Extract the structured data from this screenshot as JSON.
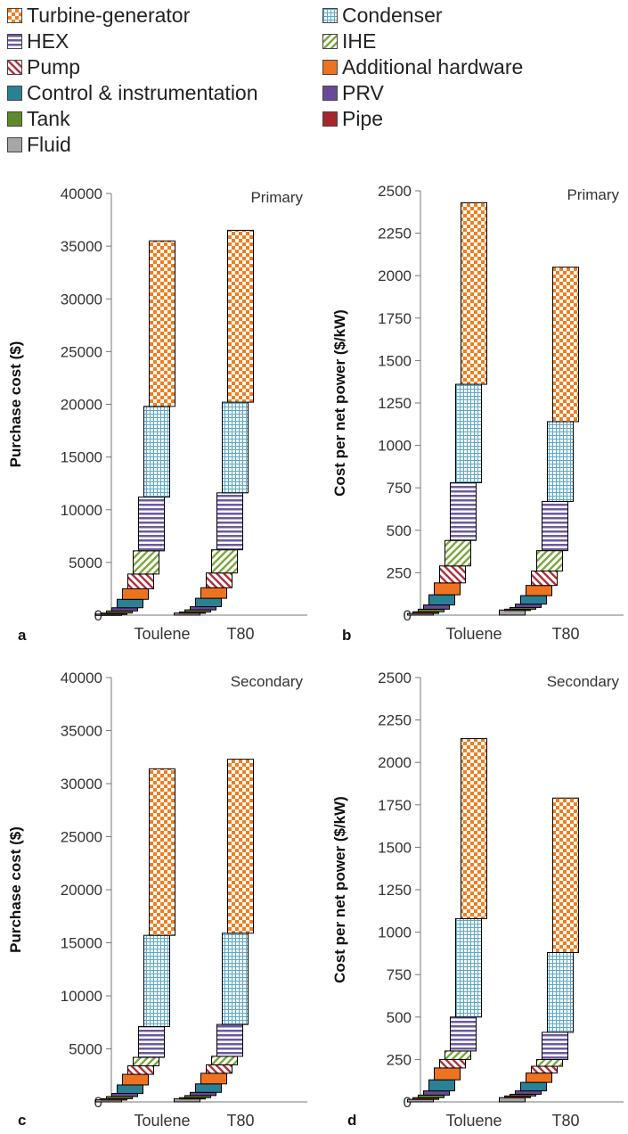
{
  "legend": [
    {
      "name": "Turbine-generator",
      "color": "#f07d1e",
      "pattern": "checker"
    },
    {
      "name": "Condenser",
      "color": "#5aa7c7",
      "pattern": "grid"
    },
    {
      "name": "HEX",
      "color": "#6b5a9e",
      "pattern": "hlines"
    },
    {
      "name": "IHE",
      "color": "#7da63c",
      "pattern": "diag-up"
    },
    {
      "name": "Pump",
      "color": "#b0303d",
      "pattern": "diag-down"
    },
    {
      "name": "Additional hardware",
      "color": "#ee7320",
      "pattern": "solid"
    },
    {
      "name": "Control & instrumentation",
      "color": "#2a8094",
      "pattern": "solid"
    },
    {
      "name": "PRV",
      "color": "#6a4899",
      "pattern": "solid"
    },
    {
      "name": "Tank",
      "color": "#5e8a2a",
      "pattern": "solid"
    },
    {
      "name": "Pipe",
      "color": "#a5272c",
      "pattern": "solid"
    },
    {
      "name": "Fluid",
      "color": "#a6a6a6",
      "pattern": "solid"
    }
  ],
  "chart_data": [
    {
      "panel": "a",
      "type": "bar",
      "stacked": "waterfall",
      "title": "Primary",
      "ylabel": "Purchase cost ($)",
      "ylim": [
        0,
        40000
      ],
      "yticks": [
        0,
        5000,
        10000,
        15000,
        20000,
        25000,
        30000,
        35000,
        40000
      ],
      "categories": [
        "Toulene",
        "T80"
      ],
      "series": [
        {
          "name": "Fluid",
          "values": [
            100,
            200
          ]
        },
        {
          "name": "Pipe",
          "values": [
            100,
            100
          ]
        },
        {
          "name": "Tank",
          "values": [
            200,
            200
          ]
        },
        {
          "name": "PRV",
          "values": [
            300,
            300
          ]
        },
        {
          "name": "Control & instrumentation",
          "values": [
            800,
            800
          ]
        },
        {
          "name": "Additional hardware",
          "values": [
            1000,
            1000
          ]
        },
        {
          "name": "Pump",
          "values": [
            1400,
            1400
          ]
        },
        {
          "name": "IHE",
          "values": [
            2200,
            2200
          ]
        },
        {
          "name": "HEX",
          "values": [
            5100,
            5400
          ]
        },
        {
          "name": "Condenser",
          "values": [
            8600,
            8600
          ]
        },
        {
          "name": "Turbine-generator",
          "values": [
            15700,
            16300
          ]
        }
      ]
    },
    {
      "panel": "b",
      "type": "bar",
      "stacked": "waterfall",
      "title": "Primary",
      "ylabel": "Cost per net power ($/kW)",
      "ylim": [
        0,
        2500
      ],
      "yticks": [
        0,
        250,
        500,
        750,
        1000,
        1250,
        1500,
        1750,
        2000,
        2250,
        2500
      ],
      "categories": [
        "Toluene",
        "T80"
      ],
      "series": [
        {
          "name": "Fluid",
          "values": [
            10,
            30
          ]
        },
        {
          "name": "Pipe",
          "values": [
            10,
            5
          ]
        },
        {
          "name": "Tank",
          "values": [
            15,
            10
          ]
        },
        {
          "name": "PRV",
          "values": [
            25,
            20
          ]
        },
        {
          "name": "Control & instrumentation",
          "values": [
            60,
            50
          ]
        },
        {
          "name": "Additional hardware",
          "values": [
            70,
            60
          ]
        },
        {
          "name": "Pump",
          "values": [
            100,
            85
          ]
        },
        {
          "name": "IHE",
          "values": [
            150,
            120
          ]
        },
        {
          "name": "HEX",
          "values": [
            340,
            290
          ]
        },
        {
          "name": "Condenser",
          "values": [
            580,
            470
          ]
        },
        {
          "name": "Turbine-generator",
          "values": [
            1070,
            910
          ]
        }
      ]
    },
    {
      "panel": "c",
      "type": "bar",
      "stacked": "waterfall",
      "title": "Secondary",
      "ylabel": "Purchase cost ($)",
      "ylim": [
        0,
        40000
      ],
      "yticks": [
        0,
        5000,
        10000,
        15000,
        20000,
        25000,
        30000,
        35000,
        40000
      ],
      "categories": [
        "Toulene",
        "T80"
      ],
      "series": [
        {
          "name": "Fluid",
          "values": [
            200,
            300
          ]
        },
        {
          "name": "Pipe",
          "values": [
            100,
            100
          ]
        },
        {
          "name": "Tank",
          "values": [
            200,
            200
          ]
        },
        {
          "name": "PRV",
          "values": [
            300,
            300
          ]
        },
        {
          "name": "Control & instrumentation",
          "values": [
            800,
            800
          ]
        },
        {
          "name": "Additional hardware",
          "values": [
            1000,
            1000
          ]
        },
        {
          "name": "Pump",
          "values": [
            800,
            800
          ]
        },
        {
          "name": "IHE",
          "values": [
            800,
            800
          ]
        },
        {
          "name": "HEX",
          "values": [
            2900,
            3000
          ]
        },
        {
          "name": "Condenser",
          "values": [
            8600,
            8600
          ]
        },
        {
          "name": "Turbine-generator",
          "values": [
            15700,
            16400
          ]
        }
      ]
    },
    {
      "panel": "d",
      "type": "bar",
      "stacked": "waterfall",
      "title": "Secondary",
      "ylabel": "Cost per net power ($/kW)",
      "ylim": [
        0,
        2500
      ],
      "yticks": [
        0,
        250,
        500,
        750,
        1000,
        1250,
        1500,
        1750,
        2000,
        2250,
        2500
      ],
      "categories": [
        "Toluene",
        "T80"
      ],
      "series": [
        {
          "name": "Fluid",
          "values": [
            15,
            25
          ]
        },
        {
          "name": "Pipe",
          "values": [
            10,
            10
          ]
        },
        {
          "name": "Tank",
          "values": [
            15,
            10
          ]
        },
        {
          "name": "PRV",
          "values": [
            25,
            20
          ]
        },
        {
          "name": "Control & instrumentation",
          "values": [
            65,
            50
          ]
        },
        {
          "name": "Additional hardware",
          "values": [
            70,
            55
          ]
        },
        {
          "name": "Pump",
          "values": [
            50,
            40
          ]
        },
        {
          "name": "IHE",
          "values": [
            50,
            40
          ]
        },
        {
          "name": "HEX",
          "values": [
            200,
            160
          ]
        },
        {
          "name": "Condenser",
          "values": [
            580,
            470
          ]
        },
        {
          "name": "Turbine-generator",
          "values": [
            1060,
            910
          ]
        }
      ]
    }
  ]
}
